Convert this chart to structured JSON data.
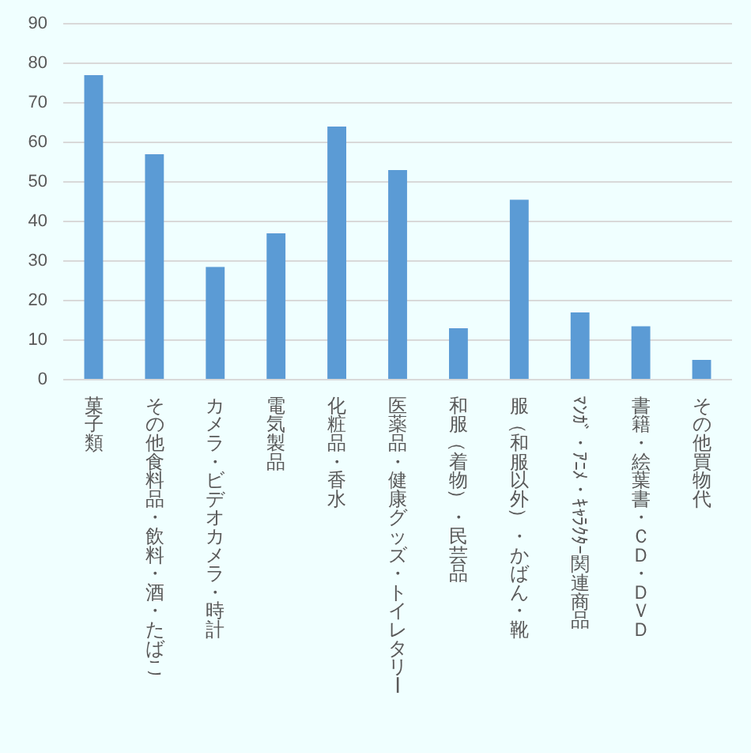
{
  "chart_data": {
    "type": "bar",
    "categories": [
      "菓子類",
      "その他食料品・飲料・酒・たばこ",
      "カメラ・ビデオカメラ・時計",
      "電気製品",
      "化粧品・香水",
      "医薬品・健康グッズ・トイレタリー",
      "和服（着物）・民芸品",
      "服（和服以外）・かばん・靴",
      "ﾏﾝｶﾞ・ｱﾆﾒ・ｷｬﾗｸﾀｰ関連商品",
      "書籍・絵葉書・ＣＤ・ＤＶＤ",
      "その他買物代"
    ],
    "values": [
      77,
      57,
      28.5,
      37,
      64,
      53,
      13,
      45.5,
      17,
      13.5,
      5
    ],
    "color": "#5b9bd5",
    "ylim": [
      0,
      90
    ],
    "yticks": [
      0,
      10,
      20,
      30,
      40,
      50,
      60,
      70,
      80,
      90
    ],
    "grid": "y"
  }
}
